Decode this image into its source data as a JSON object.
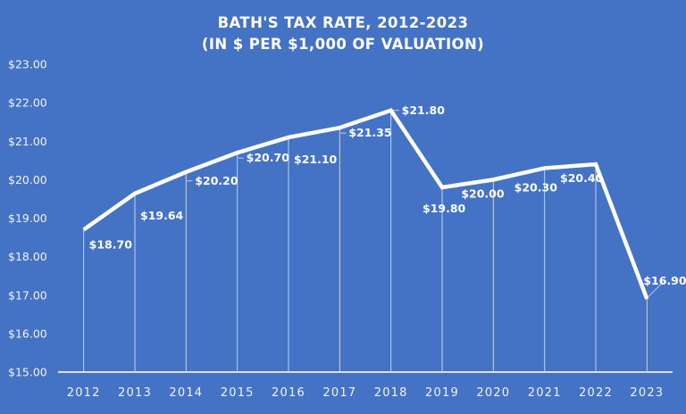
{
  "chart_data": {
    "type": "line",
    "title_lines": [
      "BATH'S TAX RATE, 2012-2023",
      "(IN $ PER $1,000 OF VALUATION)"
    ],
    "xlabel": "",
    "ylabel": "",
    "categories": [
      "2012",
      "2013",
      "2014",
      "2015",
      "2016",
      "2017",
      "2018",
      "2019",
      "2020",
      "2021",
      "2022",
      "2023"
    ],
    "series": [
      {
        "name": "Tax Rate",
        "values": [
          18.7,
          19.64,
          20.2,
          20.7,
          21.1,
          21.35,
          21.8,
          19.8,
          20.0,
          20.3,
          20.4,
          16.9
        ],
        "labels": [
          "$18.70",
          "$19.64",
          "$20.20",
          "$20.70",
          "$21.10",
          "$21.35",
          "$21.80",
          "$19.80",
          "$20.00",
          "$20.30",
          "$20.40",
          "$16.90"
        ],
        "color": "#FFFFFF"
      }
    ],
    "ylim": [
      15,
      23
    ],
    "yticks": [
      15,
      16,
      17,
      18,
      19,
      20,
      21,
      22,
      23
    ],
    "ytick_labels": [
      "$15.00",
      "$16.00",
      "$17.00",
      "$18.00",
      "$19.00",
      "$20.00",
      "$21.00",
      "$22.00",
      "$23.00"
    ],
    "drop_lines": true,
    "grid": false,
    "legend": "none",
    "background_color": "#4472C4"
  }
}
